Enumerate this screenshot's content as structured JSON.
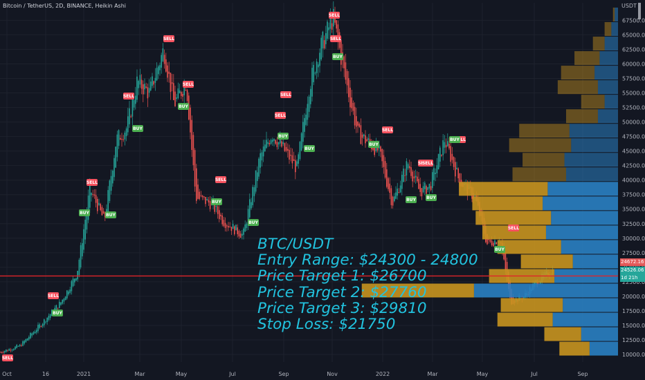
{
  "header": {
    "symbol_line": "Bitcoin / TetherUS, 2D, BINANCE, Heikin Ashi"
  },
  "price_axis": {
    "currency": "USDT",
    "ticks": [
      "67500.00",
      "65000.00",
      "62500.00",
      "60000.00",
      "57500.00",
      "55000.00",
      "52500.00",
      "50000.00",
      "47500.00",
      "45000.00",
      "42500.00",
      "40000.00",
      "37500.00",
      "35000.00",
      "32500.00",
      "30000.00",
      "27500.00",
      "25000.00",
      "22500.00",
      "20000.00",
      "17500.00",
      "15000.00",
      "12500.00",
      "10000.00"
    ],
    "last_price_tag": "24672.16",
    "close_tag": "24526.06",
    "countdown_tag": "1d 21h"
  },
  "time_axis": {
    "labels": [
      "Oct",
      "16",
      "2021",
      "Mar",
      "May",
      "Jul",
      "Sep",
      "Nov",
      "2022",
      "Mar",
      "May",
      "Jul",
      "Sep"
    ]
  },
  "signals": [
    {
      "type": "SELL"
    },
    {
      "type": "BUY"
    },
    {
      "type": "SELL"
    },
    {
      "type": "BUY"
    },
    {
      "type": "SELL"
    },
    {
      "type": "BUY"
    },
    {
      "type": "SELL"
    },
    {
      "type": "SELL"
    },
    {
      "type": "BUY"
    },
    {
      "type": "SELL"
    },
    {
      "type": "BUY"
    },
    {
      "type": "SELL"
    },
    {
      "type": "BUY"
    },
    {
      "type": "SELL"
    },
    {
      "type": "BUY"
    },
    {
      "type": "SELL"
    },
    {
      "type": "SELL"
    },
    {
      "type": "BUY"
    },
    {
      "type": "SELL"
    },
    {
      "type": "BUY"
    },
    {
      "type": "SELL"
    },
    {
      "type": "SELL"
    },
    {
      "type": "BUY"
    },
    {
      "type": "BUY"
    },
    {
      "type": "SELL"
    },
    {
      "type": "BUY"
    },
    {
      "type": "SELL"
    },
    {
      "type": "BUY"
    },
    {
      "type": "SELL"
    },
    {
      "type": "BUY"
    },
    {
      "type": "BUY"
    }
  ],
  "trade_plan": {
    "pair": "BTC/USDT",
    "entry": "Entry Range: $24300 - 24800",
    "target1": "Price Target 1: $26700",
    "target2": "Price Target 2: $27760",
    "target3": "Price Target 3: $29810",
    "stop": "Stop Loss: $21750"
  },
  "chart_data": {
    "type": "candlestick",
    "chart_style": "Heikin Ashi",
    "interval": "2D",
    "exchange": "BINANCE",
    "y_unit": "USDT",
    "ylim": [
      9000,
      69500
    ],
    "horizontal_line": 23500,
    "x_range": [
      "2020-09-20",
      "2022-10-30"
    ],
    "price_path": [
      {
        "x": "2020-09-20",
        "y": 10400
      },
      {
        "x": "2020-10-15",
        "y": 11500
      },
      {
        "x": "2020-11-10",
        "y": 15200
      },
      {
        "x": "2020-12-05",
        "y": 19000
      },
      {
        "x": "2020-12-25",
        "y": 24000
      },
      {
        "x": "2021-01-10",
        "y": 38500
      },
      {
        "x": "2021-01-28",
        "y": 33000
      },
      {
        "x": "2021-02-12",
        "y": 47000
      },
      {
        "x": "2021-02-25",
        "y": 49000
      },
      {
        "x": "2021-03-10",
        "y": 57000
      },
      {
        "x": "2021-03-25",
        "y": 55000
      },
      {
        "x": "2021-04-12",
        "y": 62500
      },
      {
        "x": "2021-04-25",
        "y": 53000
      },
      {
        "x": "2021-05-10",
        "y": 57000
      },
      {
        "x": "2021-05-22",
        "y": 37000
      },
      {
        "x": "2021-06-10",
        "y": 36000
      },
      {
        "x": "2021-06-25",
        "y": 33000
      },
      {
        "x": "2021-07-20",
        "y": 30500
      },
      {
        "x": "2021-08-10",
        "y": 44000
      },
      {
        "x": "2021-08-25",
        "y": 48000
      },
      {
        "x": "2021-09-10",
        "y": 45000
      },
      {
        "x": "2021-09-25",
        "y": 42000
      },
      {
        "x": "2021-10-10",
        "y": 56000
      },
      {
        "x": "2021-10-22",
        "y": 62000
      },
      {
        "x": "2021-11-09",
        "y": 68000
      },
      {
        "x": "2021-11-25",
        "y": 57000
      },
      {
        "x": "2021-12-10",
        "y": 48000
      },
      {
        "x": "2022-01-05",
        "y": 45000
      },
      {
        "x": "2022-01-22",
        "y": 36000
      },
      {
        "x": "2022-02-10",
        "y": 43000
      },
      {
        "x": "2022-02-25",
        "y": 38000
      },
      {
        "x": "2022-03-10",
        "y": 39000
      },
      {
        "x": "2022-03-28",
        "y": 47000
      },
      {
        "x": "2022-04-15",
        "y": 40000
      },
      {
        "x": "2022-05-05",
        "y": 37000
      },
      {
        "x": "2022-05-20",
        "y": 29000
      },
      {
        "x": "2022-06-05",
        "y": 30000
      },
      {
        "x": "2022-06-18",
        "y": 19000
      },
      {
        "x": "2022-07-05",
        "y": 20000
      },
      {
        "x": "2022-07-20",
        "y": 22500
      },
      {
        "x": "2022-08-10",
        "y": 24500
      }
    ],
    "volume_profile": [
      {
        "price": 68500,
        "buy": 0.02,
        "sell": 0.01
      },
      {
        "price": 66000,
        "buy": 0.04,
        "sell": 0.04
      },
      {
        "price": 63500,
        "buy": 0.08,
        "sell": 0.07
      },
      {
        "price": 61000,
        "buy": 0.11,
        "sell": 0.15
      },
      {
        "price": 58500,
        "buy": 0.14,
        "sell": 0.2
      },
      {
        "price": 56000,
        "buy": 0.12,
        "sell": 0.24
      },
      {
        "price": 53500,
        "buy": 0.08,
        "sell": 0.14
      },
      {
        "price": 51000,
        "buy": 0.12,
        "sell": 0.19
      },
      {
        "price": 48500,
        "buy": 0.29,
        "sell": 0.3
      },
      {
        "price": 46000,
        "buy": 0.28,
        "sell": 0.37
      },
      {
        "price": 43500,
        "buy": 0.32,
        "sell": 0.25
      },
      {
        "price": 41000,
        "buy": 0.31,
        "sell": 0.32
      },
      {
        "price": 38500,
        "buy": 0.42,
        "sell": 0.53
      },
      {
        "price": 36000,
        "buy": 0.45,
        "sell": 0.42
      },
      {
        "price": 33500,
        "buy": 0.4,
        "sell": 0.45
      },
      {
        "price": 31000,
        "buy": 0.43,
        "sell": 0.38
      },
      {
        "price": 28500,
        "buy": 0.34,
        "sell": 0.38
      },
      {
        "price": 26000,
        "buy": 0.27,
        "sell": 0.31
      },
      {
        "price": 23500,
        "buy": 0.38,
        "sell": 0.39
      },
      {
        "price": 21000,
        "buy": 0.86,
        "sell": 0.67
      },
      {
        "price": 18500,
        "buy": 0.33,
        "sell": 0.37
      },
      {
        "price": 16000,
        "buy": 0.39,
        "sell": 0.33
      },
      {
        "price": 13500,
        "buy": 0.22,
        "sell": 0.22
      },
      {
        "price": 11000,
        "buy": 0.17,
        "sell": 0.18
      }
    ]
  },
  "colors": {
    "up": "#26a69a",
    "down": "#ef5350",
    "sell_badge": "#f7525f",
    "buy_badge": "#4caf50",
    "profile_buy": "#2a7fc2",
    "profile_sell": "#c8931f",
    "hline": "#e0242a",
    "overlay_text": "#22c3df",
    "grid": "#1e222d"
  }
}
